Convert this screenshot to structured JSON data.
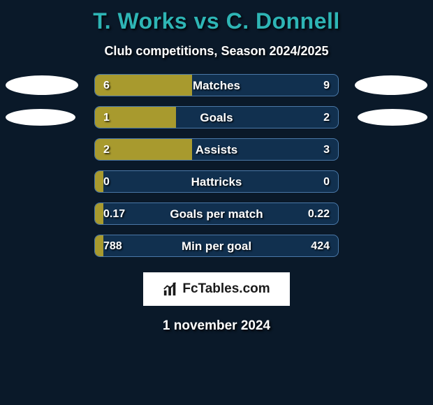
{
  "title_color": "#2eb5b5",
  "title_left": "T. Works",
  "title_vs": " vs ",
  "title_right": "C. Donnell",
  "subtitle": "Club competitions, Season 2024/2025",
  "date": "1 november 2024",
  "branding": {
    "text": "FcTables.com"
  },
  "colors": {
    "background": "#0a1929",
    "bar_bg": "#11304f",
    "bar_border": "#4a78a8",
    "left_fill": "#a89a2e",
    "right_fill": "#11304f",
    "avatar": "#ffffff",
    "text_shadow": "rgba(0,0,0,0.9)"
  },
  "avatars": {
    "row0": {
      "left_w": 104,
      "left_h": 28,
      "right_w": 104,
      "right_h": 28
    },
    "row1": {
      "left_w": 100,
      "left_h": 24,
      "right_w": 100,
      "right_h": 24
    }
  },
  "rows": [
    {
      "label": "Matches",
      "left_val": "6",
      "right_val": "9",
      "left_pct": 40.0
    },
    {
      "label": "Goals",
      "left_val": "1",
      "right_val": "2",
      "left_pct": 33.3
    },
    {
      "label": "Assists",
      "left_val": "2",
      "right_val": "3",
      "left_pct": 40.0
    },
    {
      "label": "Hattricks",
      "left_val": "0",
      "right_val": "0",
      "left_pct": 3.5
    },
    {
      "label": "Goals per match",
      "left_val": "0.17",
      "right_val": "0.22",
      "left_pct": 3.5
    },
    {
      "label": "Min per goal",
      "left_val": "788",
      "right_val": "424",
      "left_pct": 3.5
    }
  ]
}
